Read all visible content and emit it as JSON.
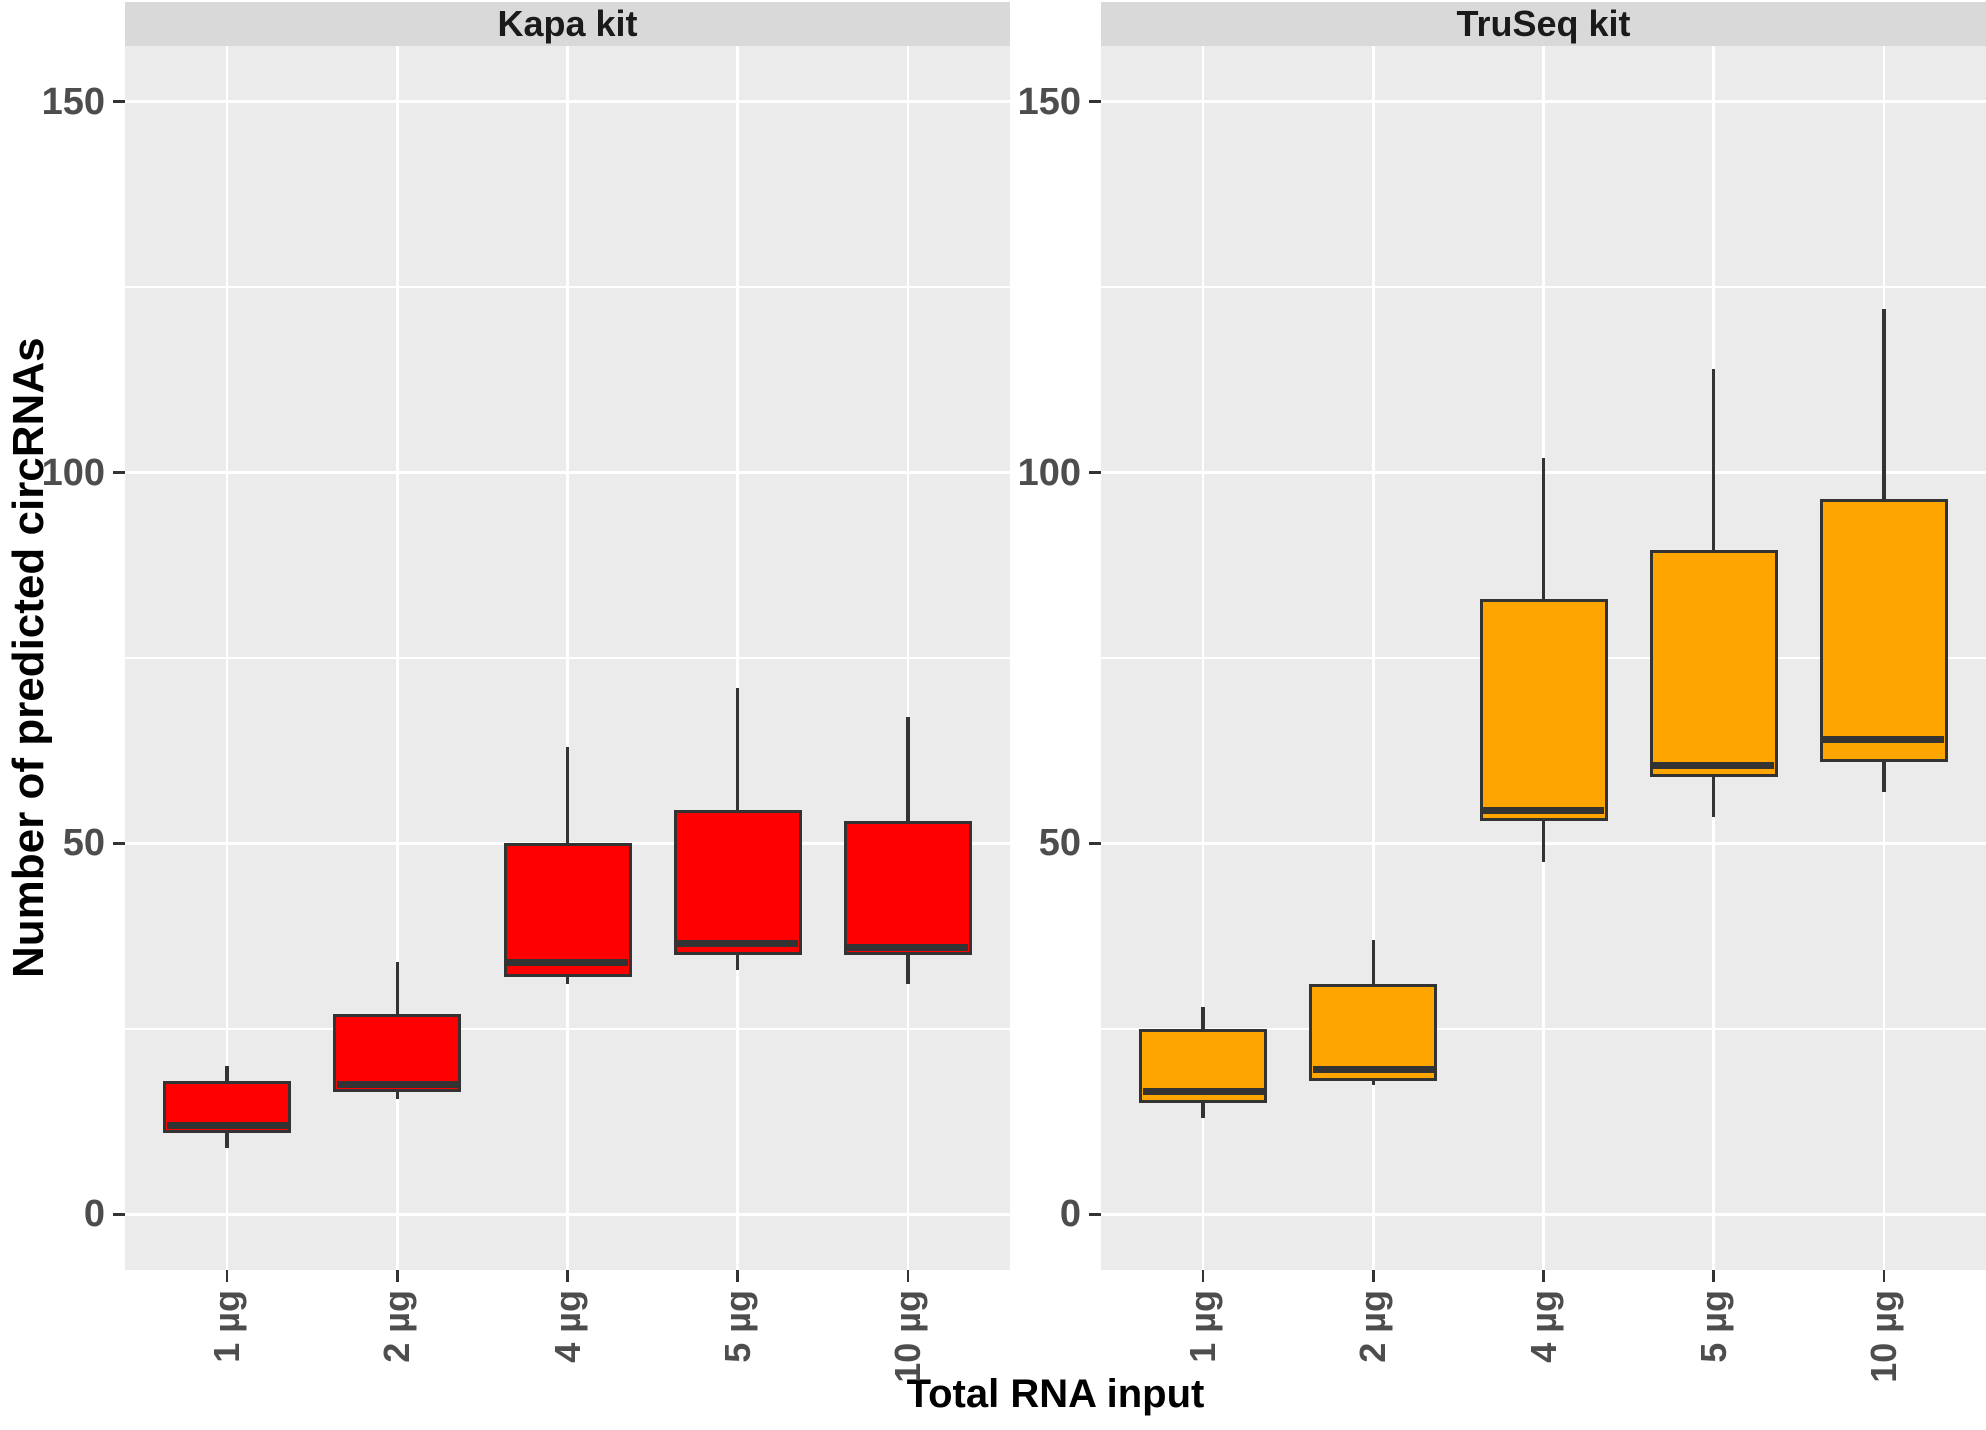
{
  "chart_data": {
    "type": "boxplot",
    "title": "",
    "xlabel": "Total RNA input",
    "ylabel": "Number of predicted circRNAs",
    "categories": [
      "1 µg",
      "2 µg",
      "4 µg",
      "5 µg",
      "10 µg"
    ],
    "yticks": [
      0,
      50,
      100,
      150
    ],
    "minor_yticks": [
      25,
      75,
      125
    ],
    "ylim": [
      -7.5,
      157.5
    ],
    "grid": "on",
    "legend": "none",
    "facets": [
      {
        "title": "Kapa kit",
        "fill_color": "#FF0000",
        "boxes": [
          {
            "category": "1 µg",
            "whisker_low": 9,
            "q1": 11,
            "median": 12,
            "q3": 18,
            "whisker_high": 20
          },
          {
            "category": "2 µg",
            "whisker_low": 15.5,
            "q1": 16.5,
            "median": 17.5,
            "q3": 27,
            "whisker_high": 34
          },
          {
            "category": "4 µg",
            "whisker_low": 31,
            "q1": 32,
            "median": 34,
            "q3": 50,
            "whisker_high": 63
          },
          {
            "category": "5 µg",
            "whisker_low": 33,
            "q1": 35,
            "median": 36.5,
            "q3": 54.5,
            "whisker_high": 71
          },
          {
            "category": "10 µg",
            "whisker_low": 31,
            "q1": 35,
            "median": 36,
            "q3": 53,
            "whisker_high": 67
          }
        ]
      },
      {
        "title": "TruSeq kit",
        "fill_color": "#FFA500",
        "boxes": [
          {
            "category": "1 µg",
            "whisker_low": 13,
            "q1": 15,
            "median": 16.5,
            "q3": 25,
            "whisker_high": 28
          },
          {
            "category": "2 µg",
            "whisker_low": 17.5,
            "q1": 18,
            "median": 19.5,
            "q3": 31,
            "whisker_high": 37
          },
          {
            "category": "4 µg",
            "whisker_low": 47.5,
            "q1": 53,
            "median": 54.5,
            "q3": 83,
            "whisker_high": 102
          },
          {
            "category": "5 µg",
            "whisker_low": 53.5,
            "q1": 59,
            "median": 60.5,
            "q3": 89.5,
            "whisker_high": 114
          },
          {
            "category": "10 µg",
            "whisker_low": 57,
            "q1": 61,
            "median": 64,
            "q3": 96.5,
            "whisker_high": 122
          }
        ]
      }
    ],
    "colors": {
      "panel_background": "#EBEBEB",
      "strip_background": "#D9D9D9",
      "gridline": "#FFFFFF",
      "box_border": "#333333",
      "median_line": "#333333",
      "tick_mark": "#333333",
      "tick_text": "#4D4D4D",
      "axis_title_text": "#000000"
    }
  }
}
